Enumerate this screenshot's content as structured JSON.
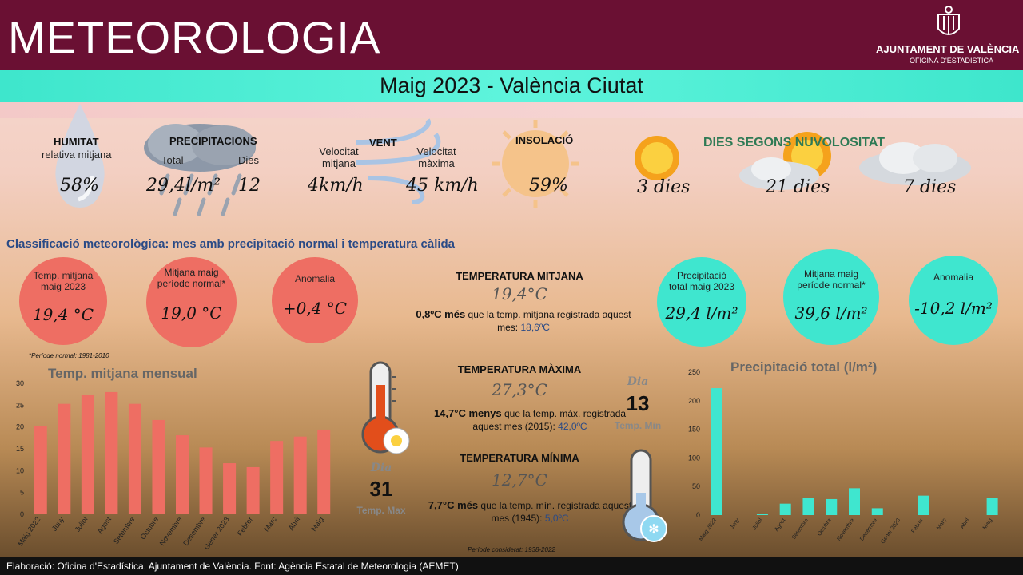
{
  "header": {
    "title": "METEOROLOGIA",
    "org_name": "AJUNTAMENT DE VALÈNCIA",
    "org_sub": "OFICINA D'ESTADÍSTICA"
  },
  "band_title": "Maig 2023 - València Ciutat",
  "summary": {
    "humitat": {
      "title": "HUMITAT",
      "subtitle": "relativa mitjana",
      "value": "58%"
    },
    "precipitacions": {
      "title": "PRECIPITACIONS",
      "total_label": "Total",
      "total_value": "29,4l/m²",
      "days_label": "Dies",
      "days_value": "12"
    },
    "vent": {
      "title": "VENT",
      "avg_label": "Velocitat mitjana",
      "avg_value": "4km/h",
      "max_label": "Velocitat màxima",
      "max_value": "45 km/h"
    },
    "insolacio": {
      "title": "INSOLACIÓ",
      "value": "59%"
    },
    "nuvolositat": {
      "title": "DIES SEGONS NUVOLOSITAT",
      "clear": "3 dies",
      "partly": "21 dies",
      "cloudy": "7 dies"
    }
  },
  "classification": "Classificació meteorològica: mes amb precipitació normal i temperatura càlida",
  "temp_circles": [
    {
      "label": "Temp. mitjana maig 2023",
      "value": "19,4 °C"
    },
    {
      "label": "Mitjana maig període normal*",
      "value": "19,0 °C"
    },
    {
      "label": "Anomalia",
      "value": "+0,4 °C"
    }
  ],
  "precip_circles": [
    {
      "label": "Precipitació total maig 2023",
      "value": "29,4 l/m²"
    },
    {
      "label": "Mitjana maig període normal*",
      "value": "39,6 l/m²"
    },
    {
      "label": "Anomalia",
      "value": "-10,2 l/m²"
    }
  ],
  "normal_period_note": "*Període normal: 1981-2010",
  "temps": {
    "mitjana": {
      "title": "TEMPERATURA MITJANA",
      "value": "19,4°C",
      "diff": "0,8ºC més",
      "text": " que la temp. mitjana registrada aquest mes: ",
      "ref": "18,6ºC"
    },
    "maxima": {
      "title": "TEMPERATURA MÀXIMA",
      "value": "27,3°C",
      "diff": "14,7°C menys",
      "text": " que la temp. màx. registrada aquest mes (2015): ",
      "ref": "42,0ºC"
    },
    "minima": {
      "title": "TEMPERATURA MÍNIMA",
      "value": "12,7°C",
      "diff": "7,7°C més",
      "text": " que la temp. mín. registrada aquest mes (1945): ",
      "ref": "5,0ºC"
    },
    "period_note": "Període considerat: 1938-2022"
  },
  "dia_max": {
    "label": "Dia",
    "day": "31",
    "caption": "Temp. Max"
  },
  "dia_min": {
    "label": "Dia",
    "day": "13",
    "caption": "Temp. Min"
  },
  "footer": "Elaboració: Oficina d'Estadística. Ajuntament de València. Font: Agència Estatal de Meteorologia (AEMET)",
  "chart_data": [
    {
      "type": "bar",
      "title": "Temp. mitjana mensual",
      "categories": [
        "Maig 2022",
        "Juny",
        "Juliol",
        "Agost",
        "Setembre",
        "Octubre",
        "Novembre",
        "Desembre",
        "Gener 2023",
        "Febrer",
        "Març",
        "Abril",
        "Maig"
      ],
      "values": [
        20.2,
        25.3,
        27.3,
        28.0,
        25.3,
        21.6,
        18.1,
        15.3,
        11.7,
        10.8,
        16.8,
        17.8,
        19.4
      ],
      "ylim": [
        0,
        30
      ],
      "yticks": [
        0,
        5,
        10,
        15,
        20,
        25,
        30
      ],
      "color": "#ee6e63"
    },
    {
      "type": "bar",
      "title": "Precipitació total (l/m²)",
      "categories": [
        "Maig 2022",
        "Juny",
        "Juliol",
        "Agost",
        "Setembre",
        "Octubre",
        "Novembre",
        "Desembre",
        "Gener 2023",
        "Febrer",
        "Març",
        "Abril",
        "Maig"
      ],
      "values": [
        222,
        0,
        2,
        20,
        30,
        28,
        47,
        12,
        0,
        34,
        0,
        0,
        29.4
      ],
      "ylim": [
        0,
        250
      ],
      "yticks": [
        0,
        50,
        100,
        150,
        200,
        250
      ],
      "color": "#3fe6cf"
    }
  ]
}
